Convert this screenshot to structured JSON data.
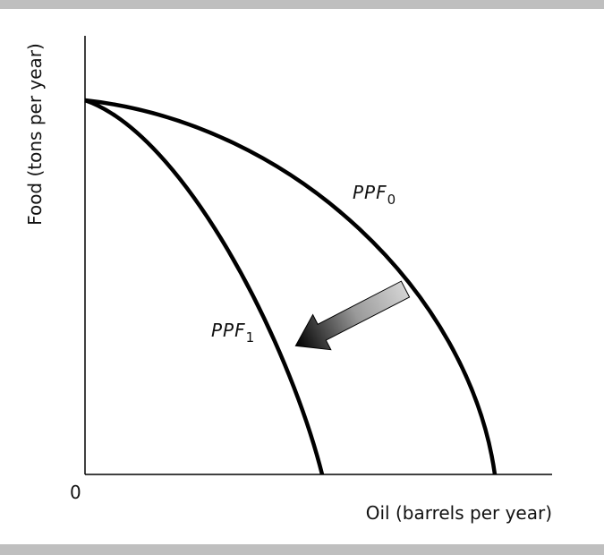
{
  "axes": {
    "y_label": "Food (tons per year)",
    "x_label": "Oil (barrels per year)",
    "origin": "0"
  },
  "curves": [
    {
      "label": "PPF",
      "subscript": "0"
    },
    {
      "label": "PPF",
      "subscript": "1"
    }
  ]
}
